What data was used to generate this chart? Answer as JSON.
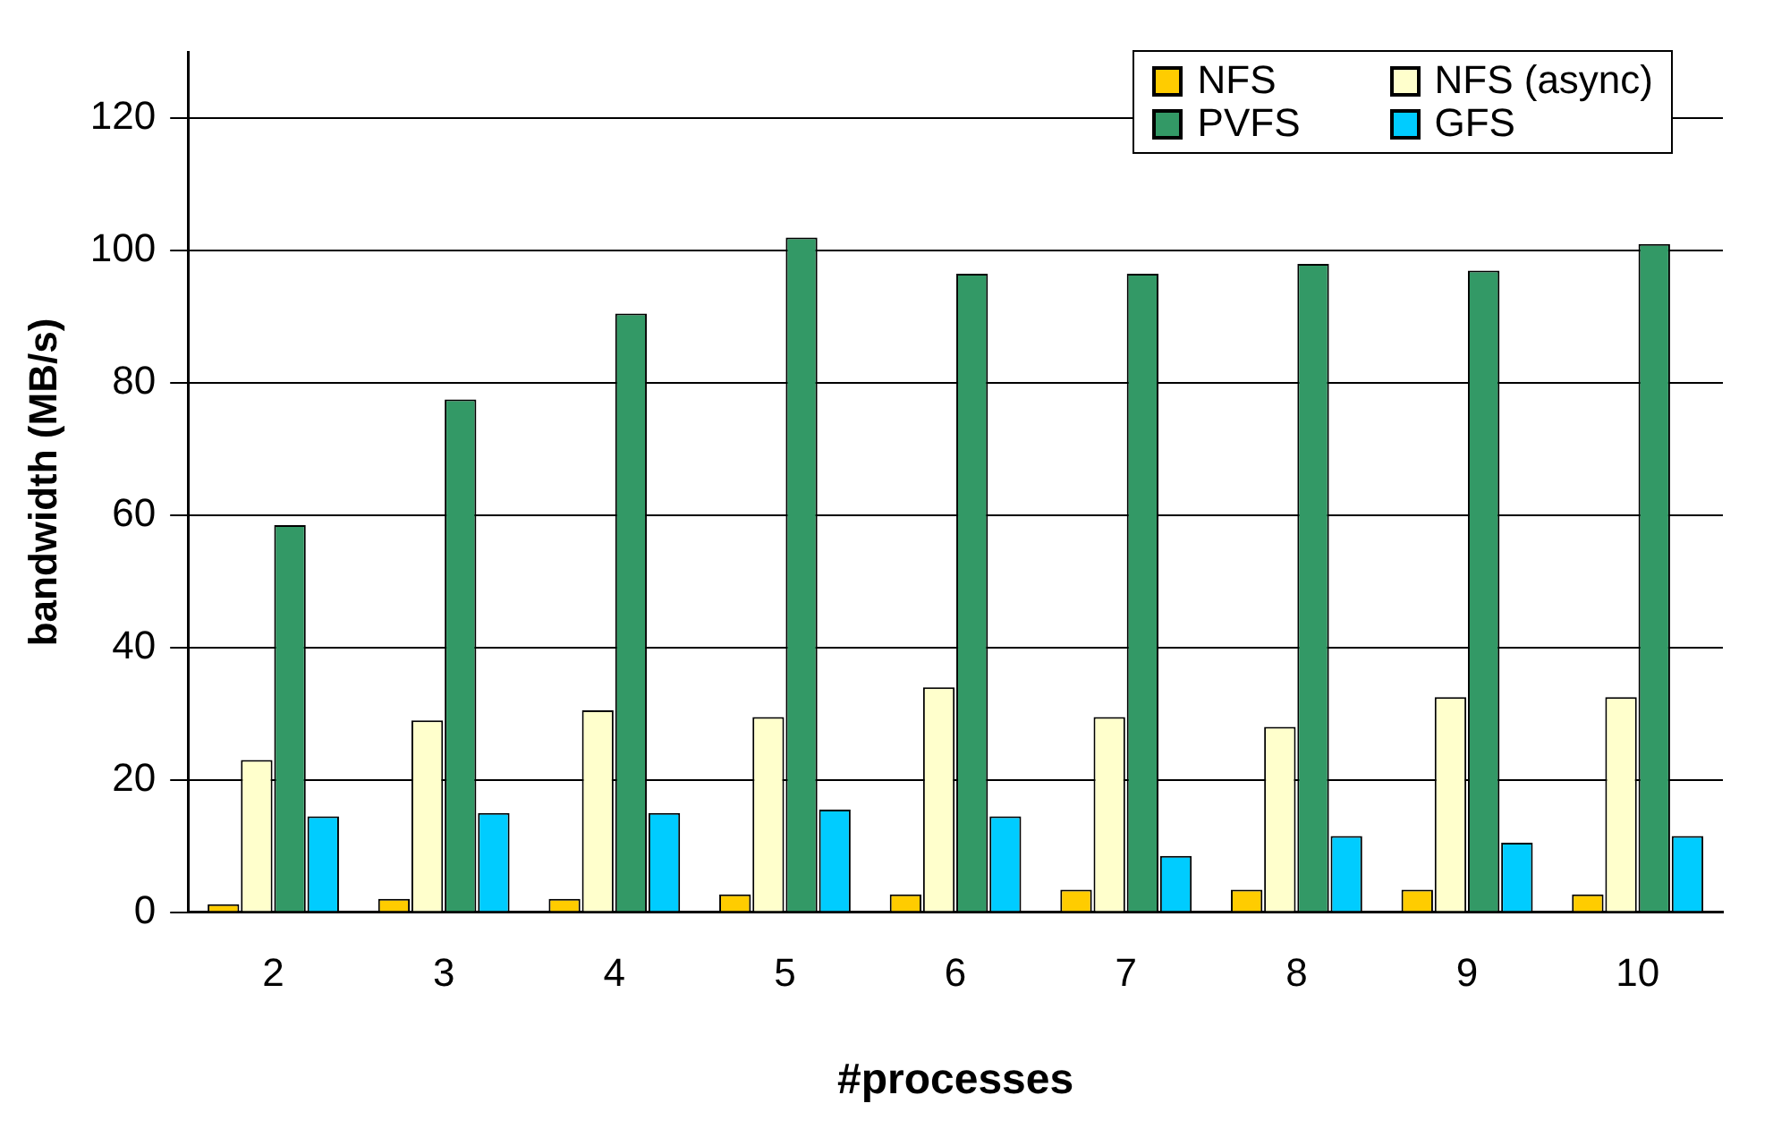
{
  "chart_data": {
    "type": "bar",
    "xlabel": "#processes",
    "ylabel": "bandwidth (MB/s)",
    "categories": [
      "2",
      "3",
      "4",
      "5",
      "6",
      "7",
      "8",
      "9",
      "10"
    ],
    "series": [
      {
        "name": "NFS",
        "color": "#ffcc00",
        "values": [
          1.2,
          2,
          2,
          2.7,
          2.7,
          3.4,
          3.4,
          3.4,
          2.7
        ]
      },
      {
        "name": "NFS (async)",
        "color": "#ffffcc",
        "values": [
          23,
          29,
          30.5,
          29.5,
          34,
          29.5,
          28,
          32.5,
          32.5
        ]
      },
      {
        "name": "PVFS",
        "color": "#339966",
        "values": [
          58.5,
          77.5,
          90.5,
          102,
          96.5,
          96.5,
          98,
          97,
          101
        ]
      },
      {
        "name": "GFS",
        "color": "#00ccff",
        "values": [
          14.5,
          15,
          15,
          15.5,
          14.5,
          8.5,
          11.5,
          10.5,
          11.5
        ]
      }
    ],
    "ylim": [
      0,
      130
    ],
    "yticks": [
      0,
      20,
      40,
      60,
      80,
      100,
      120
    ],
    "grid": "y",
    "legend": "top right"
  }
}
